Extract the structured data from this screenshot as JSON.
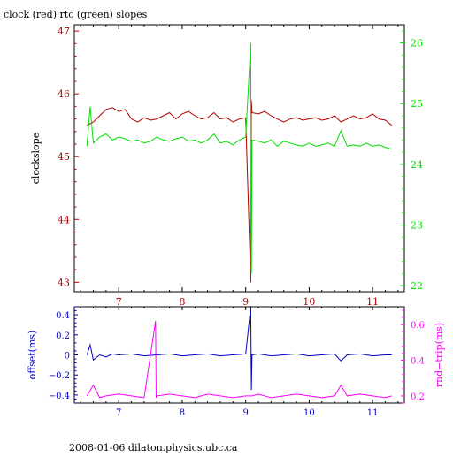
{
  "title": "clock (red) rtc (green) slopes",
  "footer": "2008-01-06  dilaton.physics.ubc.ca",
  "colors": {
    "clock": "#b00000",
    "rtc": "#00e000",
    "offset": "#0000c8",
    "rndtrip": "#ff00ff",
    "frame": "#000000"
  },
  "chart_data": [
    {
      "type": "line",
      "xlim": [
        6.3,
        11.5
      ],
      "x_ticks": [
        7,
        8,
        9,
        10,
        11
      ],
      "y_left": {
        "label": "clockslope",
        "lim": [
          42.85,
          47.1
        ],
        "ticks": [
          43,
          44,
          45,
          46,
          47
        ],
        "color": "#b00000"
      },
      "y_right": {
        "label": "",
        "lim": [
          21.9,
          26.3
        ],
        "ticks": [
          22,
          23,
          24,
          25,
          26
        ],
        "color": "#00e000"
      },
      "series": [
        {
          "name": "clock",
          "axis": "left",
          "color": "#b00000",
          "x": [
            6.5,
            6.6,
            6.7,
            6.8,
            6.9,
            7.0,
            7.1,
            7.2,
            7.3,
            7.4,
            7.5,
            7.6,
            7.7,
            7.8,
            7.9,
            8.0,
            8.1,
            8.2,
            8.3,
            8.4,
            8.5,
            8.6,
            8.7,
            8.8,
            8.9,
            9.0,
            9.08,
            9.09,
            9.1,
            9.2,
            9.3,
            9.4,
            9.5,
            9.6,
            9.7,
            9.8,
            9.9,
            10.0,
            10.1,
            10.2,
            10.3,
            10.4,
            10.5,
            10.6,
            10.7,
            10.8,
            10.9,
            11.0,
            11.1,
            11.2,
            11.3
          ],
          "y": [
            45.5,
            45.55,
            45.65,
            45.75,
            45.78,
            45.72,
            45.75,
            45.6,
            45.55,
            45.62,
            45.58,
            45.6,
            45.65,
            45.7,
            45.6,
            45.68,
            45.72,
            45.65,
            45.6,
            45.62,
            45.7,
            45.6,
            45.62,
            45.55,
            45.6,
            45.62,
            43.0,
            45.9,
            45.7,
            45.68,
            45.72,
            45.65,
            45.6,
            45.55,
            45.6,
            45.62,
            45.58,
            45.6,
            45.62,
            45.58,
            45.6,
            45.65,
            45.55,
            45.6,
            45.65,
            45.6,
            45.62,
            45.68,
            45.6,
            45.58,
            45.5
          ]
        },
        {
          "name": "rtc",
          "axis": "right",
          "color": "#00e000",
          "x": [
            6.5,
            6.55,
            6.6,
            6.7,
            6.8,
            6.9,
            7.0,
            7.1,
            7.2,
            7.3,
            7.4,
            7.5,
            7.6,
            7.7,
            7.8,
            7.9,
            8.0,
            8.1,
            8.2,
            8.3,
            8.4,
            8.5,
            8.6,
            8.7,
            8.8,
            8.9,
            9.0,
            9.08,
            9.09,
            9.1,
            9.2,
            9.3,
            9.4,
            9.5,
            9.6,
            9.7,
            9.8,
            9.9,
            10.0,
            10.1,
            10.2,
            10.3,
            10.4,
            10.5,
            10.6,
            10.7,
            10.8,
            10.9,
            11.0,
            11.1,
            11.2,
            11.3
          ],
          "y": [
            24.3,
            24.95,
            24.35,
            24.45,
            24.5,
            24.4,
            24.45,
            24.42,
            24.38,
            24.4,
            24.35,
            24.38,
            24.45,
            24.4,
            24.38,
            24.42,
            24.45,
            24.38,
            24.4,
            24.35,
            24.4,
            24.5,
            24.35,
            24.38,
            24.32,
            24.4,
            24.45,
            26.0,
            22.2,
            24.4,
            24.38,
            24.35,
            24.4,
            24.3,
            24.38,
            24.35,
            24.32,
            24.3,
            24.35,
            24.3,
            24.32,
            24.35,
            24.3,
            24.55,
            24.3,
            24.32,
            24.3,
            24.35,
            24.3,
            24.32,
            24.28,
            24.25
          ]
        }
      ]
    },
    {
      "type": "line",
      "xlim": [
        6.3,
        11.5
      ],
      "x_ticks": [
        7,
        8,
        9,
        10,
        11
      ],
      "y_left": {
        "label": "offset(ms)",
        "lim": [
          -0.48,
          0.48
        ],
        "ticks": [
          -0.4,
          -0.2,
          0,
          0.2,
          0.4
        ],
        "tick_labels": [
          "−0.4",
          "−0.2",
          "0",
          "0.2",
          "0.4"
        ],
        "color": "#0000c8"
      },
      "y_right": {
        "label": "rnd−trip(ms)",
        "lim": [
          0.16,
          0.7
        ],
        "ticks": [
          0.2,
          0.4,
          0.6
        ],
        "color": "#ff00ff"
      },
      "series": [
        {
          "name": "offset",
          "axis": "left",
          "color": "#0000c8",
          "x": [
            6.5,
            6.55,
            6.6,
            6.7,
            6.8,
            6.9,
            7.0,
            7.2,
            7.4,
            7.6,
            7.8,
            8.0,
            8.2,
            8.4,
            8.6,
            8.8,
            9.0,
            9.08,
            9.09,
            9.1,
            9.2,
            9.4,
            9.6,
            9.8,
            10.0,
            10.2,
            10.4,
            10.5,
            10.6,
            10.8,
            11.0,
            11.2,
            11.3
          ],
          "y": [
            0.0,
            0.1,
            -0.05,
            0.0,
            -0.02,
            0.01,
            0.0,
            0.01,
            -0.01,
            0.0,
            0.01,
            -0.01,
            0.0,
            0.01,
            -0.01,
            0.0,
            0.01,
            0.48,
            -0.35,
            0.0,
            0.01,
            -0.01,
            0.0,
            0.01,
            -0.01,
            0.0,
            0.01,
            -0.06,
            0.0,
            0.01,
            -0.01,
            0.0,
            0.0
          ]
        },
        {
          "name": "rnd-trip",
          "axis": "right",
          "color": "#ff00ff",
          "x": [
            6.5,
            6.6,
            6.7,
            6.8,
            7.0,
            7.2,
            7.4,
            7.58,
            7.59,
            7.6,
            7.8,
            8.0,
            8.2,
            8.4,
            8.6,
            8.8,
            9.0,
            9.1,
            9.2,
            9.4,
            9.6,
            9.8,
            10.0,
            10.2,
            10.4,
            10.5,
            10.6,
            10.8,
            11.0,
            11.2,
            11.3
          ],
          "y": [
            0.2,
            0.26,
            0.19,
            0.2,
            0.21,
            0.2,
            0.19,
            0.62,
            0.19,
            0.2,
            0.21,
            0.2,
            0.19,
            0.21,
            0.2,
            0.19,
            0.2,
            0.2,
            0.21,
            0.19,
            0.2,
            0.21,
            0.2,
            0.19,
            0.2,
            0.26,
            0.2,
            0.21,
            0.2,
            0.19,
            0.2
          ]
        }
      ]
    }
  ]
}
